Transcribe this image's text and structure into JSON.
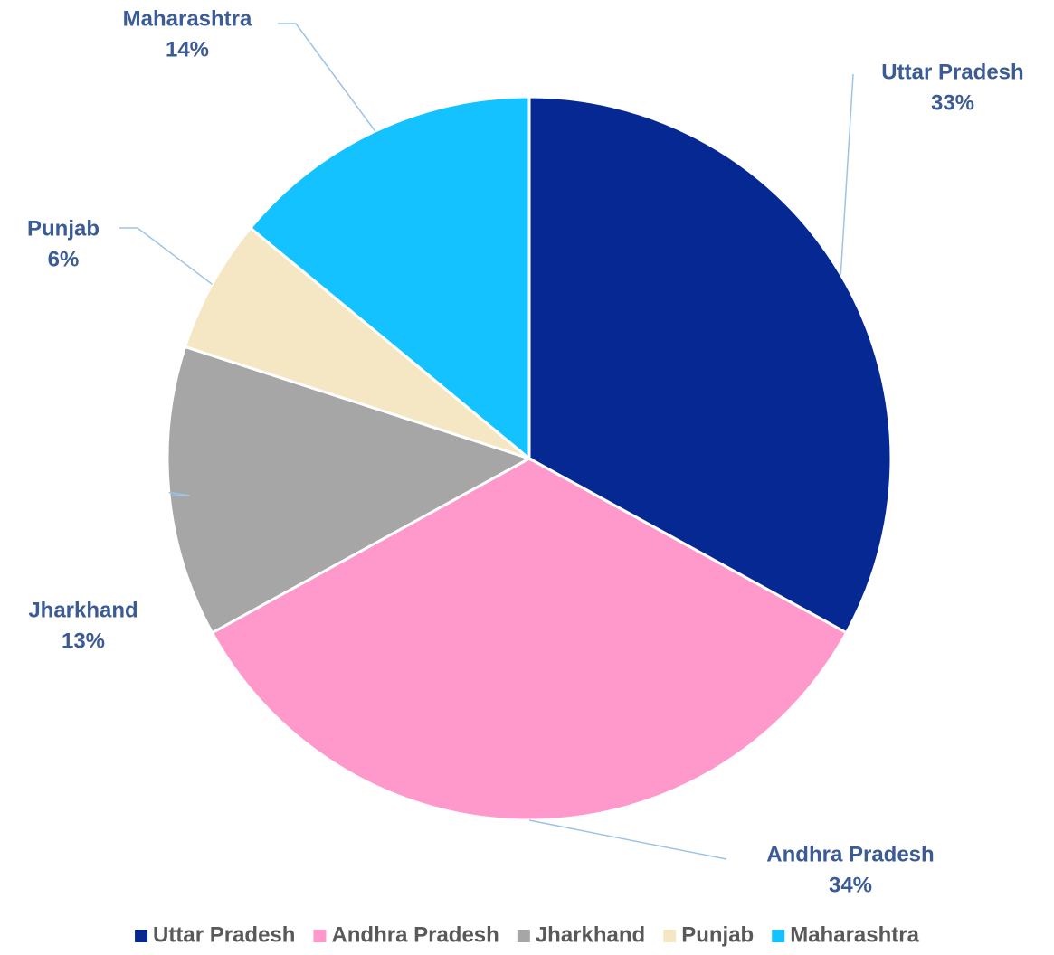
{
  "chart_data": {
    "type": "pie",
    "categories": [
      "Uttar Pradesh",
      "Andhra Pradesh",
      "Jharkhand",
      "Punjab",
      "Maharashtra"
    ],
    "values": [
      33,
      34,
      13,
      6,
      14
    ],
    "value_labels": [
      "33%",
      "34%",
      "13%",
      "6%",
      "14%"
    ],
    "colors": [
      "#062893",
      "#ff99cc",
      "#a6a6a6",
      "#f5e7c3",
      "#14c2ff"
    ],
    "legend": "bottom"
  }
}
